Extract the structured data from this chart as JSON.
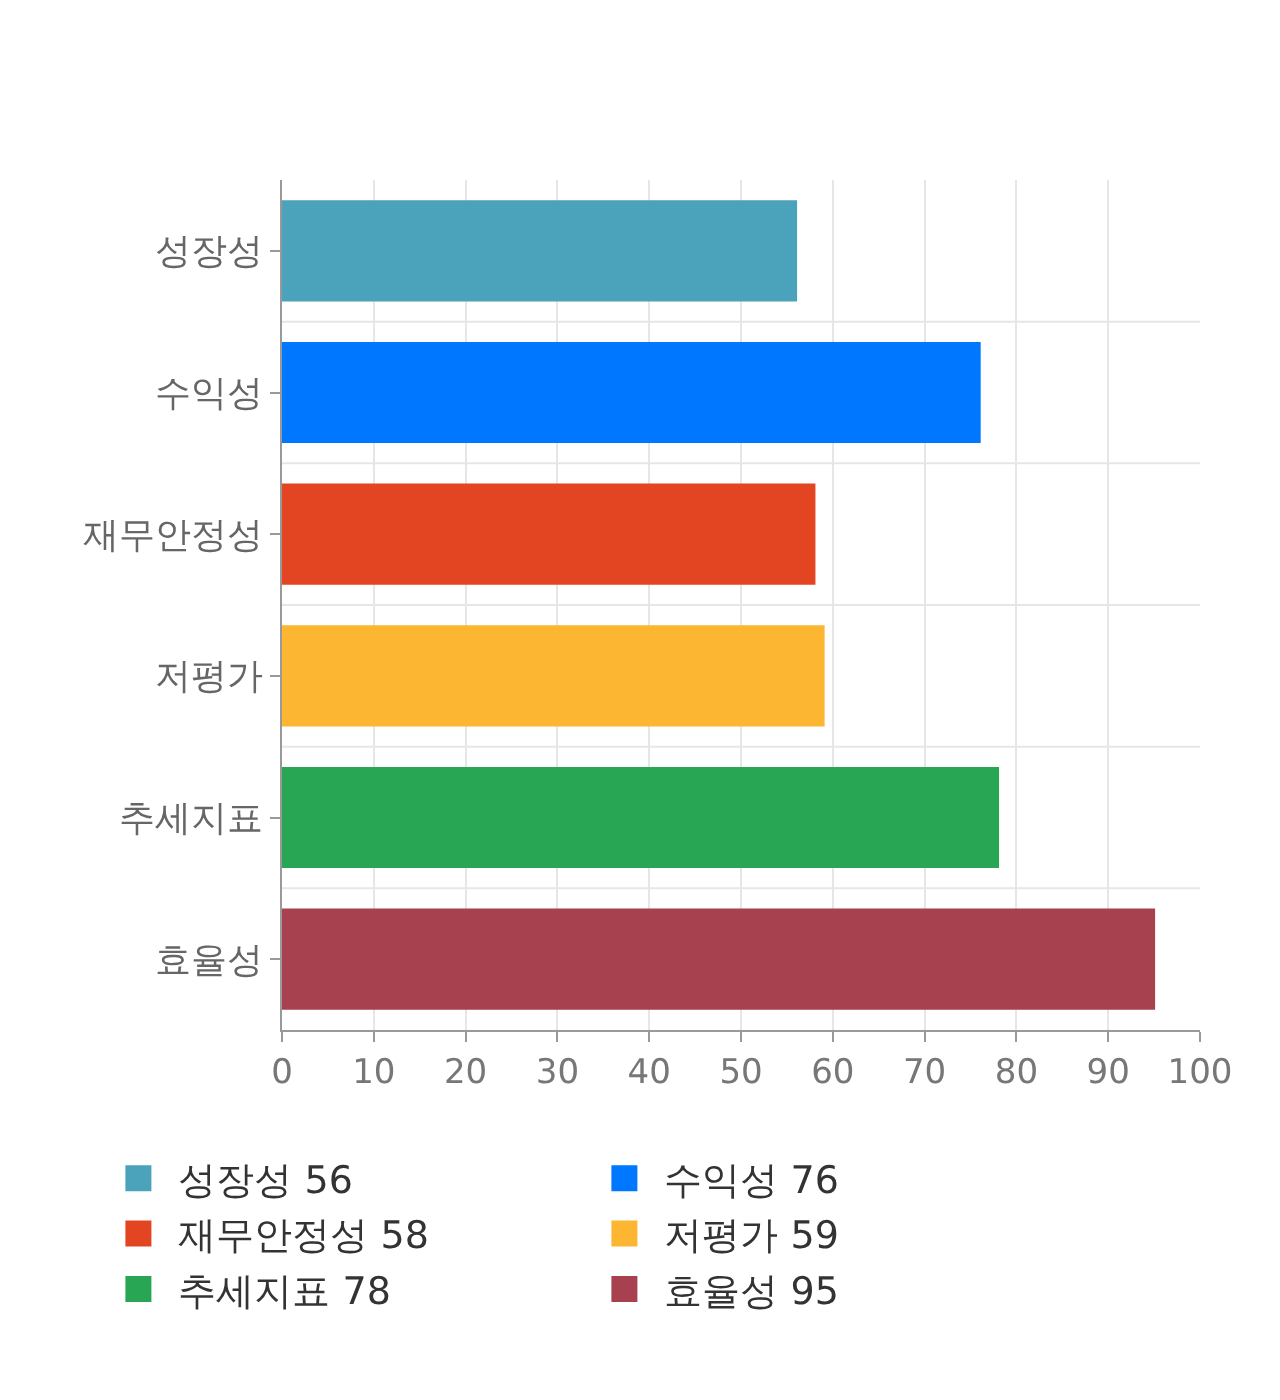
{
  "chart_data": {
    "type": "bar",
    "orientation": "horizontal",
    "categories": [
      "성장성",
      "수익성",
      "재무안정성",
      "저평가",
      "추세지표",
      "효율성"
    ],
    "series": [
      {
        "name": "성장성 56",
        "color": "#4aa3ba",
        "values": [
          56,
          null,
          null,
          null,
          null,
          null
        ]
      },
      {
        "name": "수익성 76",
        "color": "#0077ff",
        "values": [
          null,
          76,
          null,
          null,
          null,
          null
        ]
      },
      {
        "name": "재무안정성 58",
        "color": "#e34522",
        "values": [
          null,
          null,
          58,
          null,
          null,
          null
        ]
      },
      {
        "name": "저평가 59",
        "color": "#fdb632",
        "values": [
          null,
          null,
          null,
          59,
          null,
          null
        ]
      },
      {
        "name": "추세지표 78",
        "color": "#28a653",
        "values": [
          null,
          null,
          null,
          null,
          78,
          null
        ]
      },
      {
        "name": "효율성 95",
        "color": "#a8414f",
        "values": [
          null,
          null,
          null,
          null,
          null,
          95
        ]
      }
    ],
    "xlim": [
      0,
      100
    ],
    "xticks": [
      0,
      10,
      20,
      30,
      40,
      50,
      60,
      70,
      80,
      90,
      100
    ],
    "grid": "x",
    "legend": "bottom"
  }
}
